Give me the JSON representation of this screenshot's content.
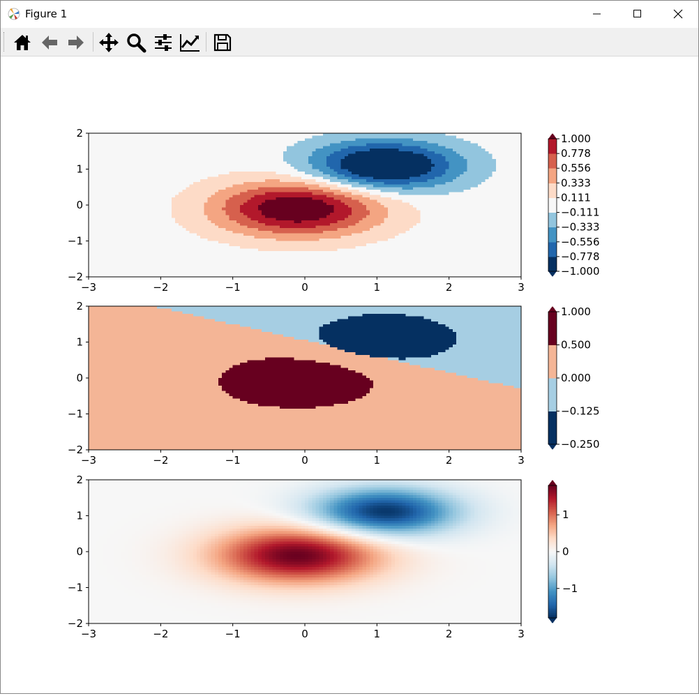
{
  "window": {
    "title": "Figure 1",
    "controls": [
      "minimize",
      "maximize",
      "close"
    ],
    "icon": "matplotlib-icon"
  },
  "toolbar": {
    "tools": [
      {
        "name": "home-button",
        "icon": "home-icon"
      },
      {
        "name": "back-button",
        "icon": "arrow-left-icon"
      },
      {
        "name": "forward-button",
        "icon": "arrow-right-icon"
      },
      {
        "name": "pan-button",
        "icon": "move-icon"
      },
      {
        "name": "zoom-button",
        "icon": "magnifier-icon"
      },
      {
        "name": "subplots-button",
        "icon": "sliders-icon"
      },
      {
        "name": "customize-button",
        "icon": "line-chart-icon"
      },
      {
        "name": "save-button",
        "icon": "floppy-disk-icon"
      }
    ]
  },
  "chart_data": [
    {
      "type": "heatmap",
      "title": "",
      "xlim": [
        -3,
        3
      ],
      "ylim": [
        -2,
        2
      ],
      "xticks": [
        "−3",
        "−2",
        "−1",
        "0",
        "1",
        "2",
        "3"
      ],
      "yticks": [
        "−2",
        "−1",
        "0",
        "1",
        "2"
      ],
      "colormap": "RdBu_r",
      "norm": "BoundaryNorm",
      "colorbar_extend": "both",
      "levels": [
        -1.0,
        -0.778,
        -0.556,
        -0.333,
        -0.111,
        0.111,
        0.333,
        0.556,
        0.778,
        1.0
      ],
      "colorbar_ticks": [
        "1.000",
        "0.778",
        "0.556",
        "0.333",
        "0.111",
        "−0.111",
        "−0.333",
        "−0.556",
        "−0.778",
        "−1.000"
      ],
      "colors": [
        "#053061",
        "#2166ac",
        "#4393c3",
        "#92c5de",
        "#f7f7f7",
        "#fddbc7",
        "#f4a582",
        "#d6604d",
        "#b2182b",
        "#67001f"
      ],
      "extend_colors": [
        "#053061",
        "#67001f"
      ],
      "field": {
        "peak_center": [
          -0.1,
          -0.1
        ],
        "trough_center": [
          1.1,
          1.1
        ],
        "min": -1.0,
        "max": 1.0
      }
    },
    {
      "type": "heatmap",
      "title": "",
      "xlim": [
        -3,
        3
      ],
      "ylim": [
        -2,
        2
      ],
      "xticks": [
        "−3",
        "−2",
        "−1",
        "0",
        "1",
        "2",
        "3"
      ],
      "yticks": [
        "−2",
        "−1",
        "0",
        "1",
        "2"
      ],
      "colormap": "RdBu_r",
      "norm": "BoundaryNorm",
      "colorbar_extend": "both",
      "levels": [
        -0.25,
        -0.125,
        0.0,
        0.5,
        1.0
      ],
      "colorbar_ticks": [
        "1.000",
        "0.500",
        "0.000",
        "−0.125",
        "−0.250"
      ],
      "colors": [
        "#053061",
        "#a6cee3",
        "#f4b596",
        "#67001f"
      ],
      "extend_colors": [
        "#053061",
        "#67001f"
      ]
    },
    {
      "type": "heatmap",
      "title": "",
      "xlim": [
        -3,
        3
      ],
      "ylim": [
        -2,
        2
      ],
      "xticks": [
        "−3",
        "−2",
        "−1",
        "0",
        "1",
        "2",
        "3"
      ],
      "yticks": [
        "−2",
        "−1",
        "0",
        "1",
        "2"
      ],
      "colormap": "RdBu_r",
      "norm": "continuous",
      "colorbar_extend": "both",
      "vrange": [
        -1.8,
        1.8
      ],
      "colorbar_ticks": [
        "1",
        "0",
        "−1"
      ],
      "colorbar_tick_values": [
        1,
        0,
        -1
      ]
    }
  ]
}
